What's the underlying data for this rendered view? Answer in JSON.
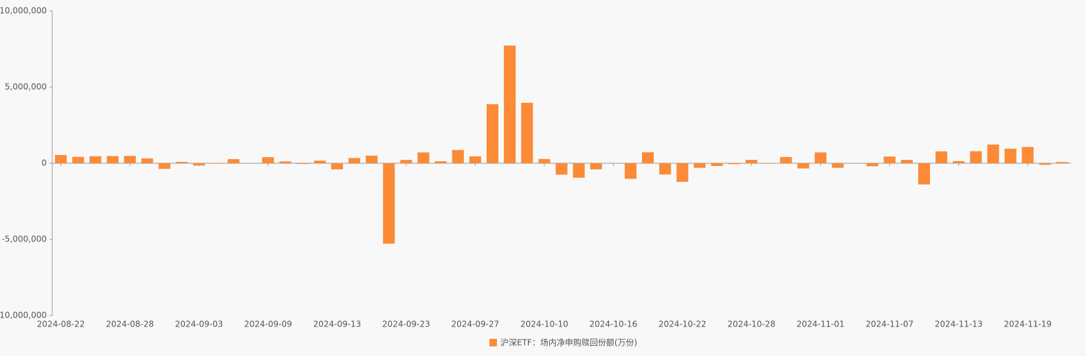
{
  "chart_data": {
    "type": "bar",
    "categories": [
      "2024-08-22",
      null,
      null,
      null,
      "2024-08-28",
      null,
      null,
      null,
      "2024-09-03",
      null,
      null,
      null,
      "2024-09-09",
      null,
      null,
      null,
      "2024-09-13",
      null,
      null,
      null,
      "2024-09-23",
      null,
      null,
      null,
      "2024-09-27",
      null,
      null,
      null,
      "2024-10-10",
      null,
      null,
      null,
      "2024-10-16",
      null,
      null,
      null,
      "2024-10-22",
      null,
      null,
      null,
      "2024-10-28",
      null,
      null,
      null,
      "2024-11-01",
      null,
      null,
      null,
      "2024-11-07",
      null,
      null,
      null,
      "2024-11-13",
      null,
      null,
      null,
      "2024-11-19",
      null,
      null
    ],
    "series": [
      {
        "name": "沪深ETF：场内净申购赎回份额(万份)",
        "color": "#fd8a36",
        "values": [
          540000,
          420000,
          460000,
          470000,
          480000,
          320000,
          -370000,
          90000,
          -150000,
          30000,
          270000,
          0,
          400000,
          120000,
          -50000,
          170000,
          -400000,
          340000,
          500000,
          -5280000,
          220000,
          710000,
          130000,
          870000,
          450000,
          3880000,
          7730000,
          3970000,
          280000,
          -750000,
          -950000,
          -400000,
          0,
          -1020000,
          720000,
          -740000,
          -1220000,
          -300000,
          -180000,
          -60000,
          220000,
          -30000,
          410000,
          -340000,
          710000,
          -300000,
          0,
          -200000,
          440000,
          220000,
          -1390000,
          780000,
          140000,
          790000,
          1230000,
          960000,
          1070000,
          -100000,
          80000
        ]
      }
    ],
    "ylim": [
      -10000000,
      10000000
    ],
    "yticks": [
      {
        "value": -10000000,
        "label": "-10,000,000"
      },
      {
        "value": -5000000,
        "label": "-5,000,000"
      },
      0,
      {
        "value": 5000000,
        "label": "5,000,000"
      },
      {
        "value": 10000000,
        "label": "10,000,000"
      }
    ],
    "grid": false,
    "legend": "bottom"
  }
}
